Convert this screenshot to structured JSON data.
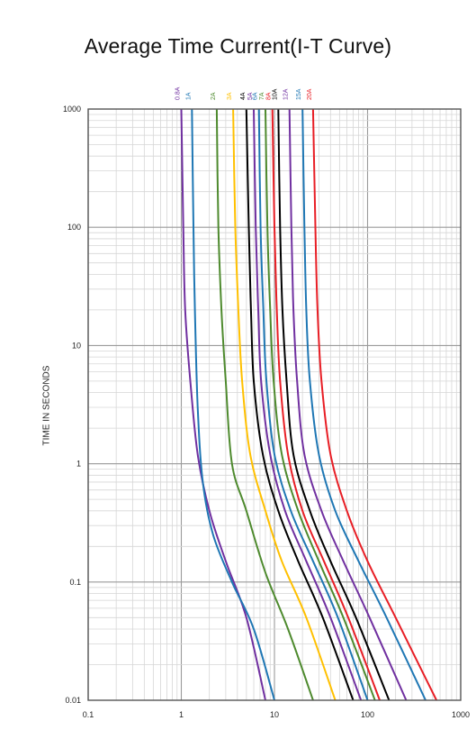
{
  "chart_data": {
    "type": "line",
    "title": "Average Time Current(I-T Curve)",
    "xlabel": "",
    "ylabel": "TIME IN SECONDS",
    "xscale": "log",
    "yscale": "log",
    "xlim": [
      0.1,
      1000
    ],
    "ylim": [
      0.01,
      1000
    ],
    "grid": true,
    "x_ticks": [
      "0.1",
      "1",
      "10",
      "100",
      "1000"
    ],
    "y_ticks": [
      "0.01",
      "0.1",
      "1",
      "10",
      "100",
      "1000"
    ],
    "series": [
      {
        "name": "0.8A",
        "color": "#7030a0",
        "x": [
          1.0,
          1.05,
          1.1,
          1.25,
          1.5,
          2.0,
          3.0,
          5.0,
          8.0
        ],
        "y": [
          1000,
          100,
          20,
          5,
          1.2,
          0.4,
          0.15,
          0.05,
          0.01
        ]
      },
      {
        "name": "1A",
        "color": "#1f77b4",
        "x": [
          1.3,
          1.35,
          1.4,
          1.5,
          1.7,
          2.2,
          3.5,
          6.0,
          10.0
        ],
        "y": [
          1000,
          100,
          20,
          3,
          0.7,
          0.25,
          0.1,
          0.04,
          0.01
        ]
      },
      {
        "name": "2A",
        "color": "#4e8a2e",
        "x": [
          2.4,
          2.5,
          2.7,
          3.0,
          3.5,
          5.0,
          8.0,
          14.0,
          26.0
        ],
        "y": [
          1000,
          100,
          20,
          5,
          1.0,
          0.4,
          0.12,
          0.04,
          0.01
        ]
      },
      {
        "name": "3A",
        "color": "#ffc000",
        "x": [
          3.6,
          3.8,
          4.1,
          4.5,
          5.5,
          8.0,
          12.0,
          22.0,
          45.0
        ],
        "y": [
          1000,
          100,
          20,
          5,
          1.2,
          0.4,
          0.15,
          0.05,
          0.01
        ]
      },
      {
        "name": "4A",
        "color": "#000000",
        "x": [
          5.0,
          5.3,
          5.6,
          6.0,
          7.5,
          11.0,
          18.0,
          33.0,
          70.0
        ],
        "y": [
          1000,
          100,
          20,
          5,
          1.2,
          0.4,
          0.15,
          0.05,
          0.01
        ]
      },
      {
        "name": "5A",
        "color": "#7030a0",
        "x": [
          6.0,
          6.3,
          6.7,
          7.2,
          9.0,
          13.0,
          22.0,
          40.0,
          85.0
        ],
        "y": [
          1000,
          100,
          20,
          5,
          1.2,
          0.4,
          0.15,
          0.05,
          0.01
        ]
      },
      {
        "name": "6A",
        "color": "#1f77b4",
        "x": [
          6.8,
          7.1,
          7.6,
          8.2,
          10.0,
          15.0,
          26.0,
          48.0,
          100.0
        ],
        "y": [
          1000,
          100,
          20,
          5,
          1.2,
          0.4,
          0.15,
          0.05,
          0.01
        ]
      },
      {
        "name": "7A",
        "color": "#4e8a2e",
        "x": [
          8.0,
          8.4,
          9.0,
          9.8,
          12.0,
          18.0,
          30.0,
          55.0,
          120.0
        ],
        "y": [
          1000,
          100,
          20,
          5,
          1.2,
          0.4,
          0.15,
          0.05,
          0.01
        ]
      },
      {
        "name": "8A",
        "color": "#e81e25",
        "x": [
          9.5,
          10.0,
          10.6,
          11.5,
          14.0,
          20.0,
          34.0,
          62.0,
          135.0
        ],
        "y": [
          1000,
          100,
          20,
          5,
          1.2,
          0.4,
          0.15,
          0.05,
          0.01
        ]
      },
      {
        "name": "10A",
        "color": "#000000",
        "x": [
          11.0,
          11.5,
          12.2,
          13.5,
          16.0,
          24.0,
          40.0,
          75.0,
          170.0
        ],
        "y": [
          1000,
          100,
          20,
          5,
          1.2,
          0.4,
          0.15,
          0.05,
          0.01
        ]
      },
      {
        "name": "12A",
        "color": "#7030a0",
        "x": [
          14.5,
          15.2,
          16.0,
          17.5,
          21.0,
          32.0,
          55.0,
          105.0,
          260.0
        ],
        "y": [
          1000,
          100,
          20,
          5,
          1.2,
          0.4,
          0.15,
          0.05,
          0.01
        ]
      },
      {
        "name": "15A",
        "color": "#1f77b4",
        "x": [
          20.0,
          21.0,
          22.0,
          24.0,
          30.0,
          45.0,
          80.0,
          160.0,
          420.0
        ],
        "y": [
          1000,
          100,
          20,
          5,
          1.2,
          0.4,
          0.15,
          0.05,
          0.01
        ]
      },
      {
        "name": "20A",
        "color": "#e81e25",
        "x": [
          26.0,
          27.5,
          29.0,
          32.0,
          40.0,
          60.0,
          100.0,
          200.0,
          550.0
        ],
        "y": [
          1000,
          100,
          20,
          5,
          1.2,
          0.4,
          0.15,
          0.05,
          0.01
        ]
      }
    ]
  }
}
